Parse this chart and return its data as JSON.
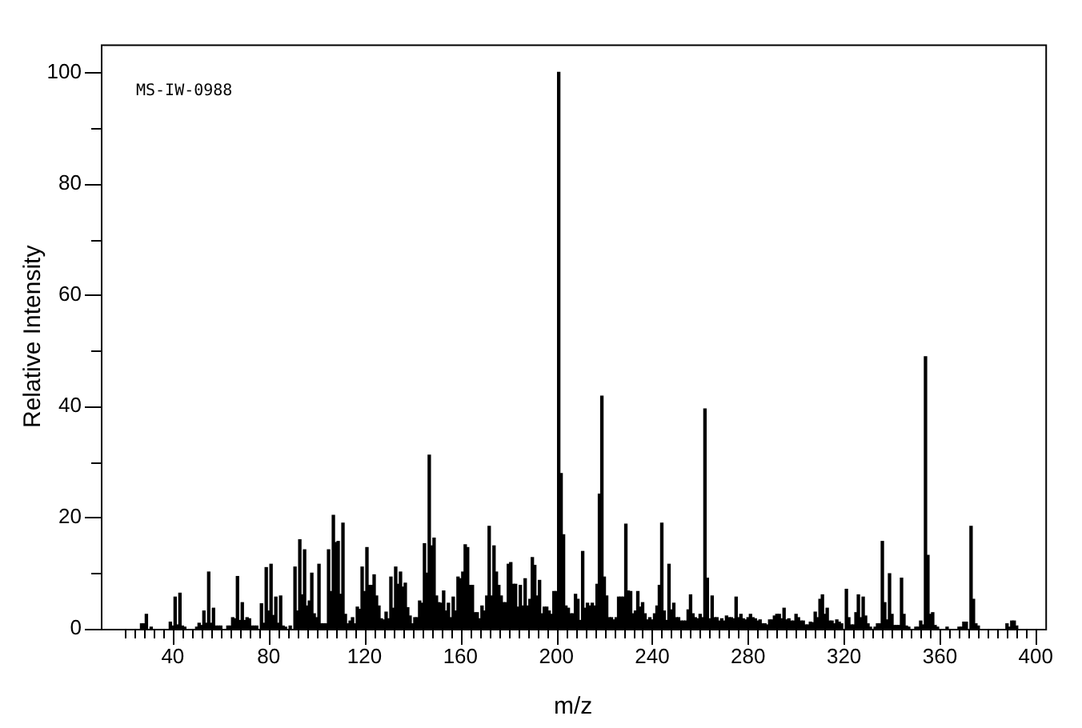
{
  "chart_data": {
    "type": "bar",
    "xlabel": "m/z",
    "ylabel": "Relative Intensity",
    "annotations": [
      "MS-IW-0988"
    ],
    "color": "#000000",
    "x": [
      27,
      28,
      29,
      31,
      39,
      40,
      41,
      42,
      43,
      44,
      45,
      50,
      51,
      52,
      53,
      54,
      55,
      56,
      57,
      58,
      59,
      60,
      63,
      64,
      65,
      66,
      67,
      68,
      69,
      70,
      71,
      72,
      73,
      74,
      75,
      77,
      78,
      79,
      80,
      81,
      82,
      83,
      84,
      85,
      86,
      87,
      89,
      91,
      92,
      93,
      94,
      95,
      96,
      97,
      98,
      99,
      100,
      101,
      102,
      103,
      104,
      105,
      106,
      107,
      108,
      109,
      110,
      111,
      112,
      113,
      114,
      115,
      116,
      117,
      118,
      119,
      120,
      121,
      122,
      123,
      124,
      125,
      126,
      127,
      128,
      129,
      130,
      131,
      132,
      133,
      134,
      135,
      136,
      137,
      138,
      139,
      140,
      141,
      142,
      143,
      144,
      145,
      146,
      147,
      148,
      149,
      150,
      151,
      152,
      153,
      154,
      155,
      156,
      157,
      158,
      159,
      160,
      161,
      162,
      163,
      164,
      165,
      166,
      167,
      168,
      169,
      170,
      171,
      172,
      173,
      174,
      175,
      176,
      177,
      178,
      179,
      180,
      181,
      182,
      183,
      184,
      185,
      186,
      187,
      188,
      189,
      190,
      191,
      192,
      193,
      194,
      195,
      196,
      197,
      198,
      199,
      200,
      201,
      202,
      203,
      204,
      205,
      206,
      207,
      208,
      209,
      210,
      211,
      212,
      213,
      214,
      215,
      216,
      217,
      218,
      219,
      220,
      221,
      222,
      223,
      224,
      225,
      226,
      227,
      228,
      229,
      230,
      231,
      232,
      233,
      234,
      235,
      236,
      237,
      238,
      239,
      240,
      241,
      242,
      243,
      244,
      245,
      246,
      247,
      248,
      249,
      250,
      251,
      252,
      253,
      254,
      255,
      256,
      257,
      258,
      259,
      260,
      261,
      262,
      263,
      264,
      265,
      266,
      267,
      268,
      269,
      270,
      271,
      272,
      273,
      274,
      275,
      276,
      277,
      278,
      279,
      280,
      281,
      282,
      283,
      284,
      285,
      286,
      287,
      288,
      289,
      290,
      291,
      292,
      293,
      294,
      295,
      296,
      297,
      298,
      299,
      300,
      301,
      302,
      303,
      304,
      305,
      306,
      307,
      308,
      309,
      310,
      311,
      312,
      313,
      314,
      315,
      316,
      317,
      318,
      319,
      321,
      322,
      323,
      324,
      325,
      326,
      327,
      328,
      329,
      330,
      331,
      333,
      334,
      335,
      336,
      337,
      338,
      339,
      340,
      341,
      342,
      343,
      344,
      345,
      346,
      347,
      350,
      351,
      352,
      353,
      354,
      355,
      356,
      357,
      358,
      359,
      363,
      368,
      369,
      370,
      371,
      373,
      374,
      375,
      376,
      388,
      389,
      390,
      391,
      392
    ],
    "values": [
      0.9,
      0.9,
      2.6,
      0.3,
      1.2,
      0.5,
      5.7,
      0.7,
      6.4,
      0.5,
      0.3,
      0.3,
      1,
      0.6,
      3.2,
      1,
      10.2,
      1,
      3.7,
      0.5,
      0.5,
      0.5,
      0.5,
      0.5,
      2,
      1.8,
      9.4,
      1.5,
      4.7,
      1.5,
      2,
      1.8,
      0.5,
      0.5,
      0.5,
      4.5,
      1,
      11,
      3.2,
      11.6,
      2.4,
      5.7,
      1,
      5.9,
      0.5,
      0.3,
      0.5,
      11.1,
      3.2,
      16,
      6.1,
      14.2,
      4.1,
      5,
      10,
      2.7,
      2,
      11.6,
      0.9,
      0.9,
      0.9,
      14.2,
      6.7,
      20.4,
      15.5,
      15.7,
      6.2,
      19,
      2.6,
      0.9,
      1.4,
      2,
      0.9,
      3.9,
      3.5,
      11.1,
      6.7,
      14.6,
      7.8,
      7.8,
      9.7,
      5.9,
      4.1,
      1.8,
      1.6,
      3,
      1.8,
      9.3,
      3.7,
      11.1,
      8,
      10.2,
      7.5,
      8.2,
      3.8,
      2.3,
      0.9,
      2,
      2,
      5,
      4.6,
      15.3,
      10,
      31.2,
      14.9,
      16.3,
      5.9,
      4.7,
      4.6,
      6.8,
      3.2,
      4.6,
      2,
      5.7,
      3.2,
      9.3,
      9,
      10.2,
      15.1,
      14.6,
      7.8,
      7.8,
      2.9,
      2.9,
      1.8,
      4.1,
      3.2,
      5.9,
      18.4,
      5.9,
      14.9,
      10.2,
      7.8,
      5.9,
      4.7,
      4.7,
      11.6,
      11.9,
      8,
      8,
      3.9,
      7.8,
      4.1,
      9,
      4.1,
      5.3,
      12.8,
      11.4,
      5.9,
      8.7,
      2.7,
      3.9,
      3.9,
      3.2,
      2.6,
      6.7,
      6.7,
      100,
      27.9,
      16.9,
      4.1,
      3.7,
      2.7,
      2.7,
      6.2,
      5.3,
      1.5,
      13.9,
      3.7,
      4.6,
      4.1,
      4.6,
      4.1,
      8,
      24.2,
      41.8,
      9.3,
      5.9,
      2,
      2,
      1.6,
      2,
      5.7,
      5.7,
      5.7,
      18.8,
      6.8,
      6.7,
      2.7,
      3.2,
      6.7,
      3.9,
      4.7,
      2.7,
      1.6,
      2,
      1.6,
      2.7,
      4.1,
      7.8,
      19,
      3.2,
      1.5,
      11.6,
      3.4,
      4.6,
      2,
      2,
      1.4,
      1.4,
      1.4,
      3.4,
      6.1,
      2.7,
      2,
      1.8,
      2.6,
      2,
      39.5,
      9.1,
      1.8,
      5.9,
      2,
      2,
      1.4,
      1.8,
      1.4,
      2.3,
      2,
      2,
      1.8,
      5.7,
      2,
      2.6,
      1.8,
      1.6,
      2,
      2.6,
      2,
      1.8,
      1.4,
      1.6,
      0.9,
      0.9,
      0.7,
      1.6,
      1.6,
      2.3,
      2.6,
      2.6,
      1.8,
      3.7,
      1.6,
      1.8,
      1.4,
      1.4,
      2.6,
      2,
      1.4,
      1.4,
      0.7,
      0.7,
      1.2,
      1.1,
      3,
      2,
      5.3,
      6.1,
      2.6,
      3.7,
      1.4,
      1.4,
      0.9,
      1.6,
      1.2,
      0.9,
      7.1,
      2,
      0.7,
      0.7,
      2.9,
      6.1,
      2,
      5.7,
      2.3,
      0.9,
      0.3,
      0.3,
      0.9,
      0.9,
      15.7,
      4.7,
      1.6,
      9.9,
      2.6,
      0.6,
      0.6,
      0.6,
      9.1,
      2.6,
      0.5,
      0.3,
      0.3,
      0.3,
      1.4,
      0.7,
      48.9,
      13.2,
      2.6,
      2.9,
      0.6,
      0.3,
      0.3,
      0.3,
      0.3,
      1.2,
      1.2,
      18.4,
      5.3,
      0.9,
      0.5,
      0.9,
      0.3,
      1.4,
      1.4,
      0.5
    ],
    "xlim": [
      10,
      404
    ],
    "ylim": [
      0,
      105
    ],
    "xticks": [
      {
        "value": 20,
        "label": null
      },
      {
        "value": 24,
        "label": null
      },
      {
        "value": 28,
        "label": null
      },
      {
        "value": 32,
        "label": null
      },
      {
        "value": 36,
        "label": null
      },
      40,
      {
        "value": 44,
        "label": null
      },
      {
        "value": 48,
        "label": null
      },
      {
        "value": 52,
        "label": null
      },
      {
        "value": 56,
        "label": null
      },
      {
        "value": 60,
        "label": null
      },
      {
        "value": 64,
        "label": null
      },
      {
        "value": 68,
        "label": null
      },
      {
        "value": 72,
        "label": null
      },
      {
        "value": 76,
        "label": null
      },
      80,
      {
        "value": 84,
        "label": null
      },
      {
        "value": 88,
        "label": null
      },
      {
        "value": 92,
        "label": null
      },
      {
        "value": 96,
        "label": null
      },
      {
        "value": 100,
        "label": null
      },
      {
        "value": 104,
        "label": null
      },
      {
        "value": 108,
        "label": null
      },
      {
        "value": 112,
        "label": null
      },
      {
        "value": 116,
        "label": null
      },
      120,
      {
        "value": 124,
        "label": null
      },
      {
        "value": 128,
        "label": null
      },
      {
        "value": 132,
        "label": null
      },
      {
        "value": 136,
        "label": null
      },
      {
        "value": 140,
        "label": null
      },
      {
        "value": 144,
        "label": null
      },
      {
        "value": 148,
        "label": null
      },
      {
        "value": 152,
        "label": null
      },
      {
        "value": 156,
        "label": null
      },
      160,
      {
        "value": 164,
        "label": null
      },
      {
        "value": 168,
        "label": null
      },
      {
        "value": 172,
        "label": null
      },
      {
        "value": 176,
        "label": null
      },
      {
        "value": 180,
        "label": null
      },
      {
        "value": 184,
        "label": null
      },
      {
        "value": 188,
        "label": null
      },
      {
        "value": 192,
        "label": null
      },
      {
        "value": 196,
        "label": null
      },
      200,
      {
        "value": 204,
        "label": null
      },
      {
        "value": 208,
        "label": null
      },
      {
        "value": 212,
        "label": null
      },
      {
        "value": 216,
        "label": null
      },
      {
        "value": 220,
        "label": null
      },
      {
        "value": 224,
        "label": null
      },
      {
        "value": 228,
        "label": null
      },
      {
        "value": 232,
        "label": null
      },
      {
        "value": 236,
        "label": null
      },
      240,
      {
        "value": 244,
        "label": null
      },
      {
        "value": 248,
        "label": null
      },
      {
        "value": 252,
        "label": null
      },
      {
        "value": 256,
        "label": null
      },
      {
        "value": 260,
        "label": null
      },
      {
        "value": 264,
        "label": null
      },
      {
        "value": 268,
        "label": null
      },
      {
        "value": 272,
        "label": null
      },
      {
        "value": 276,
        "label": null
      },
      280,
      {
        "value": 284,
        "label": null
      },
      {
        "value": 288,
        "label": null
      },
      {
        "value": 292,
        "label": null
      },
      {
        "value": 296,
        "label": null
      },
      {
        "value": 300,
        "label": null
      },
      {
        "value": 304,
        "label": null
      },
      {
        "value": 308,
        "label": null
      },
      {
        "value": 312,
        "label": null
      },
      {
        "value": 316,
        "label": null
      },
      320,
      {
        "value": 324,
        "label": null
      },
      {
        "value": 328,
        "label": null
      },
      {
        "value": 332,
        "label": null
      },
      {
        "value": 336,
        "label": null
      },
      {
        "value": 340,
        "label": null
      },
      {
        "value": 344,
        "label": null
      },
      {
        "value": 348,
        "label": null
      },
      {
        "value": 352,
        "label": null
      },
      {
        "value": 356,
        "label": null
      },
      360,
      {
        "value": 364,
        "label": null
      },
      {
        "value": 368,
        "label": null
      },
      {
        "value": 372,
        "label": null
      },
      {
        "value": 376,
        "label": null
      },
      {
        "value": 380,
        "label": null
      },
      {
        "value": 384,
        "label": null
      },
      {
        "value": 388,
        "label": null
      },
      {
        "value": 392,
        "label": null
      },
      {
        "value": 396,
        "label": null
      },
      400
    ],
    "yticks": [
      0,
      {
        "value": 10,
        "label": null
      },
      20,
      {
        "value": 30,
        "label": null
      },
      40,
      {
        "value": 50,
        "label": null
      },
      60,
      {
        "value": 70,
        "label": null
      },
      80,
      {
        "value": 90,
        "label": null
      },
      100
    ]
  }
}
